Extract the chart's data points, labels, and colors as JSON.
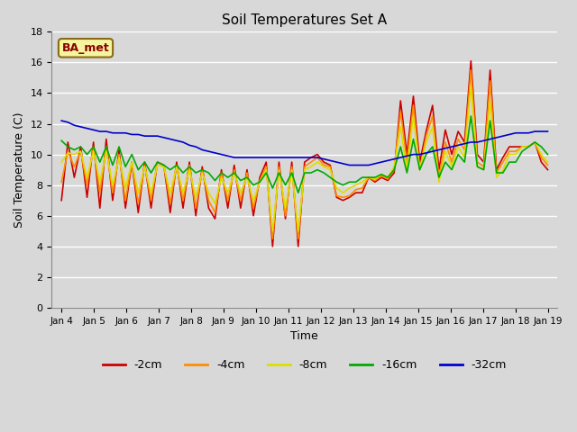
{
  "title": "Soil Temperatures Set A",
  "xlabel": "Time",
  "ylabel": "Soil Temperature (C)",
  "annotation": "BA_met",
  "ylim": [
    0,
    18
  ],
  "yticks": [
    0,
    2,
    4,
    6,
    8,
    10,
    12,
    14,
    16,
    18
  ],
  "xtick_labels": [
    "Jan 4",
    "Jan 5",
    "Jan 6",
    "Jan 7",
    "Jan 8",
    "Jan 9",
    "Jan 10",
    "Jan 11",
    "Jan 12",
    "Jan 13",
    "Jan 14",
    "Jan 15",
    "Jan 16",
    "Jan 17",
    "Jan 18",
    "Jan 19"
  ],
  "fig_width": 6.4,
  "fig_height": 4.8,
  "dpi": 100,
  "series": {
    "neg2cm": {
      "color": "#cc0000",
      "label": "-2cm",
      "data": [
        7.0,
        10.8,
        8.5,
        10.5,
        7.2,
        10.8,
        6.5,
        11.0,
        7.0,
        10.3,
        6.5,
        9.5,
        6.2,
        9.5,
        6.5,
        9.5,
        9.3,
        6.2,
        9.5,
        6.5,
        9.5,
        6.0,
        9.2,
        6.5,
        5.8,
        9.0,
        6.5,
        9.3,
        6.5,
        9.0,
        6.0,
        8.5,
        9.5,
        4.0,
        9.5,
        5.8,
        9.5,
        4.0,
        9.5,
        9.8,
        10.0,
        9.5,
        9.3,
        7.2,
        7.0,
        7.2,
        7.5,
        7.5,
        8.5,
        8.2,
        8.5,
        8.3,
        8.8,
        13.5,
        10.0,
        13.8,
        9.5,
        11.5,
        13.2,
        9.0,
        11.6,
        10.0,
        11.5,
        10.8,
        16.1,
        10.0,
        9.5,
        15.5,
        9.0,
        9.8,
        10.5,
        10.5,
        10.5,
        10.5,
        10.8,
        9.5,
        9.0
      ]
    },
    "neg4cm": {
      "color": "#ff8c00",
      "label": "-4cm",
      "data": [
        8.2,
        10.2,
        9.2,
        10.2,
        8.0,
        10.5,
        7.5,
        10.5,
        7.5,
        10.0,
        7.0,
        9.5,
        6.8,
        9.3,
        7.0,
        9.5,
        9.3,
        6.8,
        9.3,
        7.0,
        9.3,
        6.5,
        9.0,
        7.0,
        6.2,
        8.8,
        7.0,
        9.0,
        7.0,
        8.8,
        6.5,
        8.3,
        9.2,
        4.5,
        9.2,
        6.0,
        9.2,
        4.5,
        9.2,
        9.5,
        9.8,
        9.3,
        9.2,
        7.3,
        7.2,
        7.3,
        7.7,
        7.8,
        8.5,
        8.3,
        8.6,
        8.4,
        9.0,
        12.8,
        9.5,
        13.2,
        9.0,
        11.2,
        12.5,
        8.5,
        10.8,
        9.5,
        11.0,
        10.3,
        15.5,
        9.5,
        9.2,
        14.8,
        8.8,
        9.5,
        10.2,
        10.2,
        10.5,
        10.5,
        10.8,
        9.8,
        9.3
      ]
    },
    "neg8cm": {
      "color": "#dddd00",
      "label": "-8cm",
      "data": [
        9.5,
        10.1,
        10.0,
        10.2,
        8.5,
        10.2,
        8.2,
        10.2,
        8.0,
        9.8,
        7.8,
        9.5,
        7.5,
        9.2,
        7.5,
        9.3,
        9.2,
        7.5,
        9.2,
        7.5,
        9.0,
        7.2,
        8.8,
        7.5,
        6.8,
        8.5,
        7.5,
        8.8,
        7.5,
        8.5,
        7.0,
        8.2,
        9.0,
        5.0,
        9.0,
        6.5,
        9.0,
        5.0,
        9.0,
        9.2,
        9.5,
        9.2,
        9.0,
        7.8,
        7.5,
        7.8,
        8.0,
        8.2,
        8.5,
        8.4,
        8.7,
        8.5,
        9.2,
        11.8,
        9.0,
        12.5,
        9.0,
        10.8,
        11.8,
        8.2,
        10.2,
        9.2,
        10.5,
        9.8,
        14.5,
        9.2,
        9.0,
        13.5,
        8.5,
        9.0,
        10.0,
        10.0,
        10.5,
        10.5,
        10.8,
        10.0,
        9.5
      ]
    },
    "neg16cm": {
      "color": "#00aa00",
      "label": "-16cm",
      "data": [
        10.9,
        10.5,
        10.3,
        10.5,
        10.0,
        10.5,
        9.5,
        10.5,
        9.3,
        10.5,
        9.2,
        10.0,
        9.0,
        9.5,
        8.8,
        9.5,
        9.3,
        9.0,
        9.3,
        8.8,
        9.2,
        8.8,
        9.0,
        8.8,
        8.3,
        8.8,
        8.5,
        8.8,
        8.3,
        8.5,
        8.0,
        8.2,
        8.8,
        7.8,
        8.8,
        8.0,
        8.8,
        7.5,
        8.8,
        8.8,
        9.0,
        8.8,
        8.5,
        8.2,
        8.0,
        8.2,
        8.2,
        8.5,
        8.5,
        8.5,
        8.7,
        8.5,
        9.0,
        10.5,
        8.8,
        11.0,
        9.0,
        10.0,
        10.5,
        8.5,
        9.5,
        9.0,
        10.0,
        9.5,
        12.5,
        9.2,
        9.0,
        12.2,
        8.8,
        8.8,
        9.5,
        9.5,
        10.2,
        10.5,
        10.8,
        10.5,
        10.0
      ]
    },
    "neg32cm": {
      "color": "#0000cc",
      "label": "-32cm",
      "data": [
        12.2,
        12.1,
        11.9,
        11.8,
        11.7,
        11.6,
        11.5,
        11.5,
        11.4,
        11.4,
        11.4,
        11.3,
        11.3,
        11.2,
        11.2,
        11.2,
        11.1,
        11.0,
        10.9,
        10.8,
        10.6,
        10.5,
        10.3,
        10.2,
        10.1,
        10.0,
        9.9,
        9.8,
        9.8,
        9.8,
        9.8,
        9.8,
        9.8,
        9.8,
        9.8,
        9.8,
        9.8,
        9.8,
        9.8,
        9.8,
        9.8,
        9.7,
        9.6,
        9.5,
        9.4,
        9.3,
        9.3,
        9.3,
        9.3,
        9.4,
        9.5,
        9.6,
        9.7,
        9.8,
        9.9,
        10.0,
        10.0,
        10.1,
        10.2,
        10.3,
        10.4,
        10.5,
        10.6,
        10.7,
        10.8,
        10.8,
        10.9,
        11.0,
        11.1,
        11.2,
        11.3,
        11.4,
        11.4,
        11.4,
        11.5,
        11.5,
        11.5
      ]
    }
  }
}
